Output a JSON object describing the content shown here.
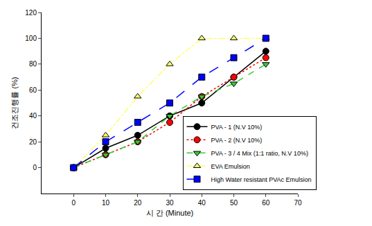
{
  "chart_data": {
    "type": "line",
    "x_label": "시 간 (Minute)",
    "y_label": "건조진행률 (%)",
    "x": [
      0,
      10,
      20,
      30,
      40,
      50,
      60
    ],
    "xlim": [
      -10,
      70
    ],
    "xticks": [
      0,
      10,
      20,
      30,
      40,
      50,
      60,
      70
    ],
    "ylim": [
      -20,
      120
    ],
    "yticks": [
      0,
      20,
      40,
      60,
      80,
      100,
      120
    ],
    "grid": false,
    "legend": "bottom right",
    "series": [
      {
        "name": "PVA - 1 (N.V 10%)",
        "color": "#000000",
        "marker": "circle",
        "line_style": "solid",
        "values": [
          0,
          15,
          25,
          40,
          50,
          70,
          90
        ]
      },
      {
        "name": "PVA - 2 (N.V 10%)",
        "color": "#ff0000",
        "marker": "circle",
        "line_style": "dot",
        "values": [
          0,
          10,
          20,
          35,
          55,
          70,
          85
        ]
      },
      {
        "name": "PVA - 3 / 4 Mix (1:1 ratio, N.V 10%)",
        "color": "#33cc33",
        "marker": "triangle-down",
        "line_style": "dash",
        "values": [
          0,
          10,
          20,
          40,
          55,
          65,
          80
        ]
      },
      {
        "name": "EVA Emulsion",
        "color": "#ffff66",
        "marker": "triangle-up",
        "line_style": "dashdot",
        "values": [
          0,
          25,
          55,
          80,
          100,
          100,
          100
        ]
      },
      {
        "name": "High Water resistant PVAc Emulsion",
        "color": "#0000ff",
        "marker": "square",
        "line_style": "longdash",
        "values": [
          0,
          20,
          35,
          50,
          70,
          85,
          100
        ]
      }
    ]
  }
}
